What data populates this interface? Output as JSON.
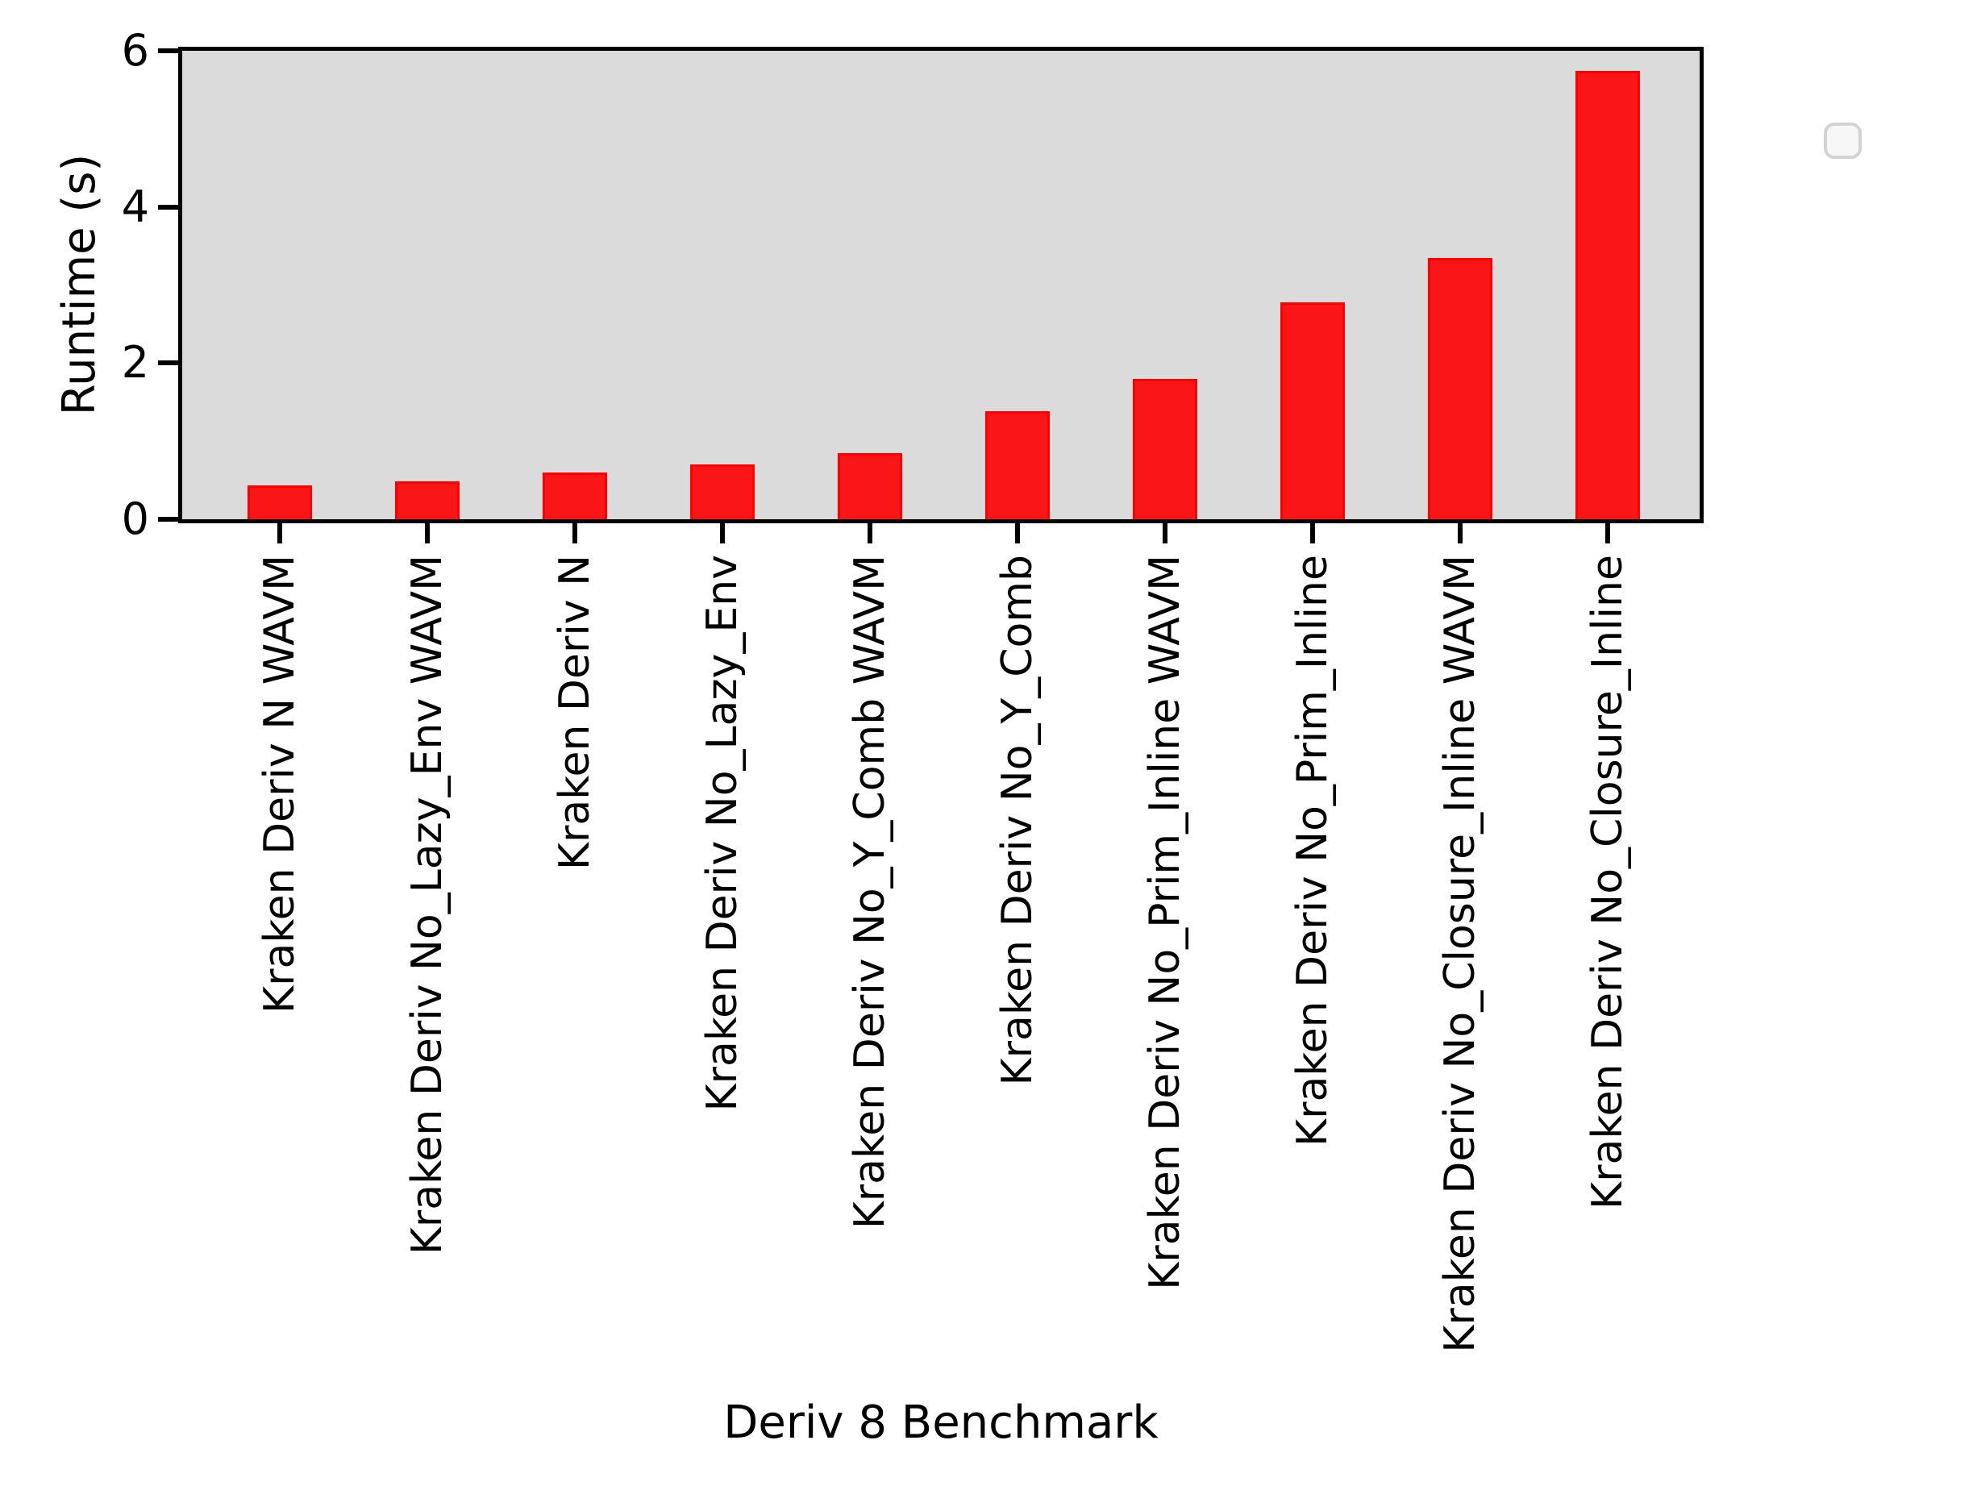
{
  "figure": {
    "background_color": "#ffffff",
    "plot_background_color": "#dbdbdb",
    "spine_color": "#000000",
    "bar_fill_color": "#fa1616",
    "bar_edge_color": "#ff0000",
    "legend_fill_color": "#f7f7f7",
    "legend_edge_color": "#d3d3d3"
  },
  "chart_data": {
    "type": "bar",
    "title": "",
    "xlabel": "Deriv 8 Benchmark",
    "ylabel": "Runtime (s)",
    "categories": [
      "Kraken Deriv N WAVM",
      "Kraken Deriv No_Lazy_Env WAVM",
      "Kraken Deriv N",
      "Kraken Deriv No_Lazy_Env",
      "Kraken Deriv No_Y_Comb WAVM",
      "Kraken Deriv No_Y_Comb",
      "Kraken Deriv No_Prim_Inline WAVM",
      "Kraken Deriv No_Prim_Inline",
      "Kraken Deriv No_Closure_Inline WAVM",
      "Kraken Deriv No_Closure_Inline"
    ],
    "values": [
      0.43,
      0.49,
      0.6,
      0.7,
      0.85,
      1.38,
      1.8,
      2.78,
      3.35,
      5.74
    ],
    "series": [
      {
        "name": "Runtime (s)",
        "values": [
          0.43,
          0.49,
          0.6,
          0.7,
          0.85,
          1.38,
          1.8,
          2.78,
          3.35,
          5.74
        ]
      }
    ],
    "ylim": [
      0,
      6
    ],
    "yticks": [
      0,
      2,
      4,
      6
    ],
    "ytick_labels": [
      "0",
      "2",
      "4",
      "6"
    ],
    "grid": false,
    "bar_color": "#fa1616",
    "legend": {
      "visible": true,
      "position": "upper right",
      "entries": []
    }
  }
}
